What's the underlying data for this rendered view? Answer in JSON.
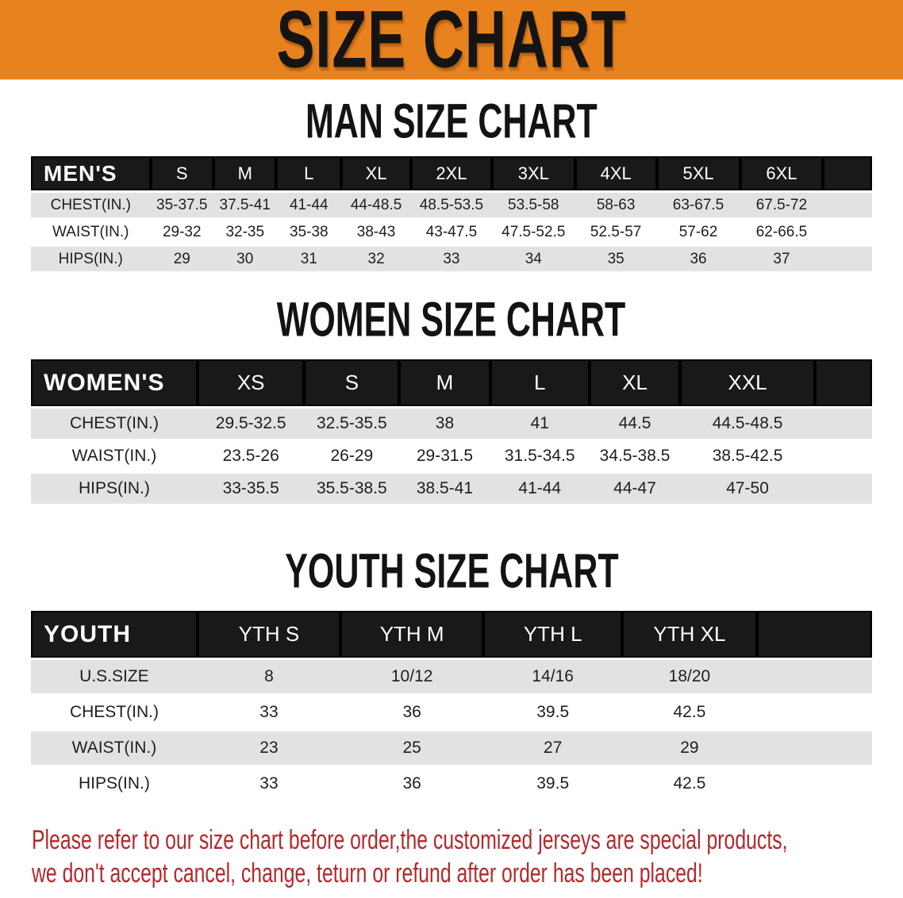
{
  "banner": {
    "title": "SIZE CHART"
  },
  "sections": [
    {
      "heading": "MAN SIZE CHART",
      "table": {
        "header_label": "MEN'S",
        "columns": [
          "S",
          "M",
          "L",
          "XL",
          "2XL",
          "3XL",
          "4XL",
          "5XL",
          "6XL"
        ],
        "rows": [
          {
            "label": "CHEST(IN.)",
            "values": [
              "35-37.5",
              "37.5-41",
              "41-44",
              "44-48.5",
              "48.5-53.5",
              "53.5-58",
              "58-63",
              "63-67.5",
              "67.5-72"
            ]
          },
          {
            "label": "WAIST(IN.)",
            "values": [
              "29-32",
              "32-35",
              "35-38",
              "38-43",
              "43-47.5",
              "47.5-52.5",
              "52.5-57",
              "57-62",
              "62-66.5"
            ]
          },
          {
            "label": "HIPS(IN.)",
            "values": [
              "29",
              "30",
              "31",
              "32",
              "33",
              "34",
              "35",
              "36",
              "37"
            ]
          }
        ]
      }
    },
    {
      "heading": "WOMEN SIZE CHART",
      "table": {
        "header_label": "WOMEN'S",
        "columns": [
          "XS",
          "S",
          "M",
          "L",
          "XL",
          "XXL"
        ],
        "rows": [
          {
            "label": "CHEST(IN.)",
            "values": [
              "29.5-32.5",
              "32.5-35.5",
              "38",
              "41",
              "44.5",
              "44.5-48.5"
            ]
          },
          {
            "label": "WAIST(IN.)",
            "values": [
              "23.5-26",
              "26-29",
              "29-31.5",
              "31.5-34.5",
              "34.5-38.5",
              "38.5-42.5"
            ]
          },
          {
            "label": "HIPS(IN.)",
            "values": [
              "33-35.5",
              "35.5-38.5",
              "38.5-41",
              "41-44",
              "44-47",
              "47-50"
            ]
          }
        ]
      }
    },
    {
      "heading": "YOUTH SIZE CHART",
      "table": {
        "header_label": "YOUTH",
        "columns": [
          "YTH S",
          "YTH M",
          "YTH L",
          "YTH XL"
        ],
        "rows": [
          {
            "label": "U.S.SIZE",
            "values": [
              "8",
              "10/12",
              "14/16",
              "18/20"
            ]
          },
          {
            "label": "CHEST(IN.)",
            "values": [
              "33",
              "36",
              "39.5",
              "42.5"
            ]
          },
          {
            "label": "WAIST(IN.)",
            "values": [
              "23",
              "25",
              "27",
              "29"
            ]
          },
          {
            "label": "HIPS(IN.)",
            "values": [
              "33",
              "36",
              "39.5",
              "42.5"
            ]
          }
        ]
      }
    }
  ],
  "footer": {
    "line1": "Please refer to our size chart before order,the customized jerseys are special products,",
    "line2": "we don't accept cancel, change, teturn or refund after order has been placed!"
  },
  "colors": {
    "banner_bg": "#e8821e",
    "table_header_bg": "#191919",
    "stripe_row_bg": "#e2e2e2",
    "footer_text": "#b5282b"
  }
}
